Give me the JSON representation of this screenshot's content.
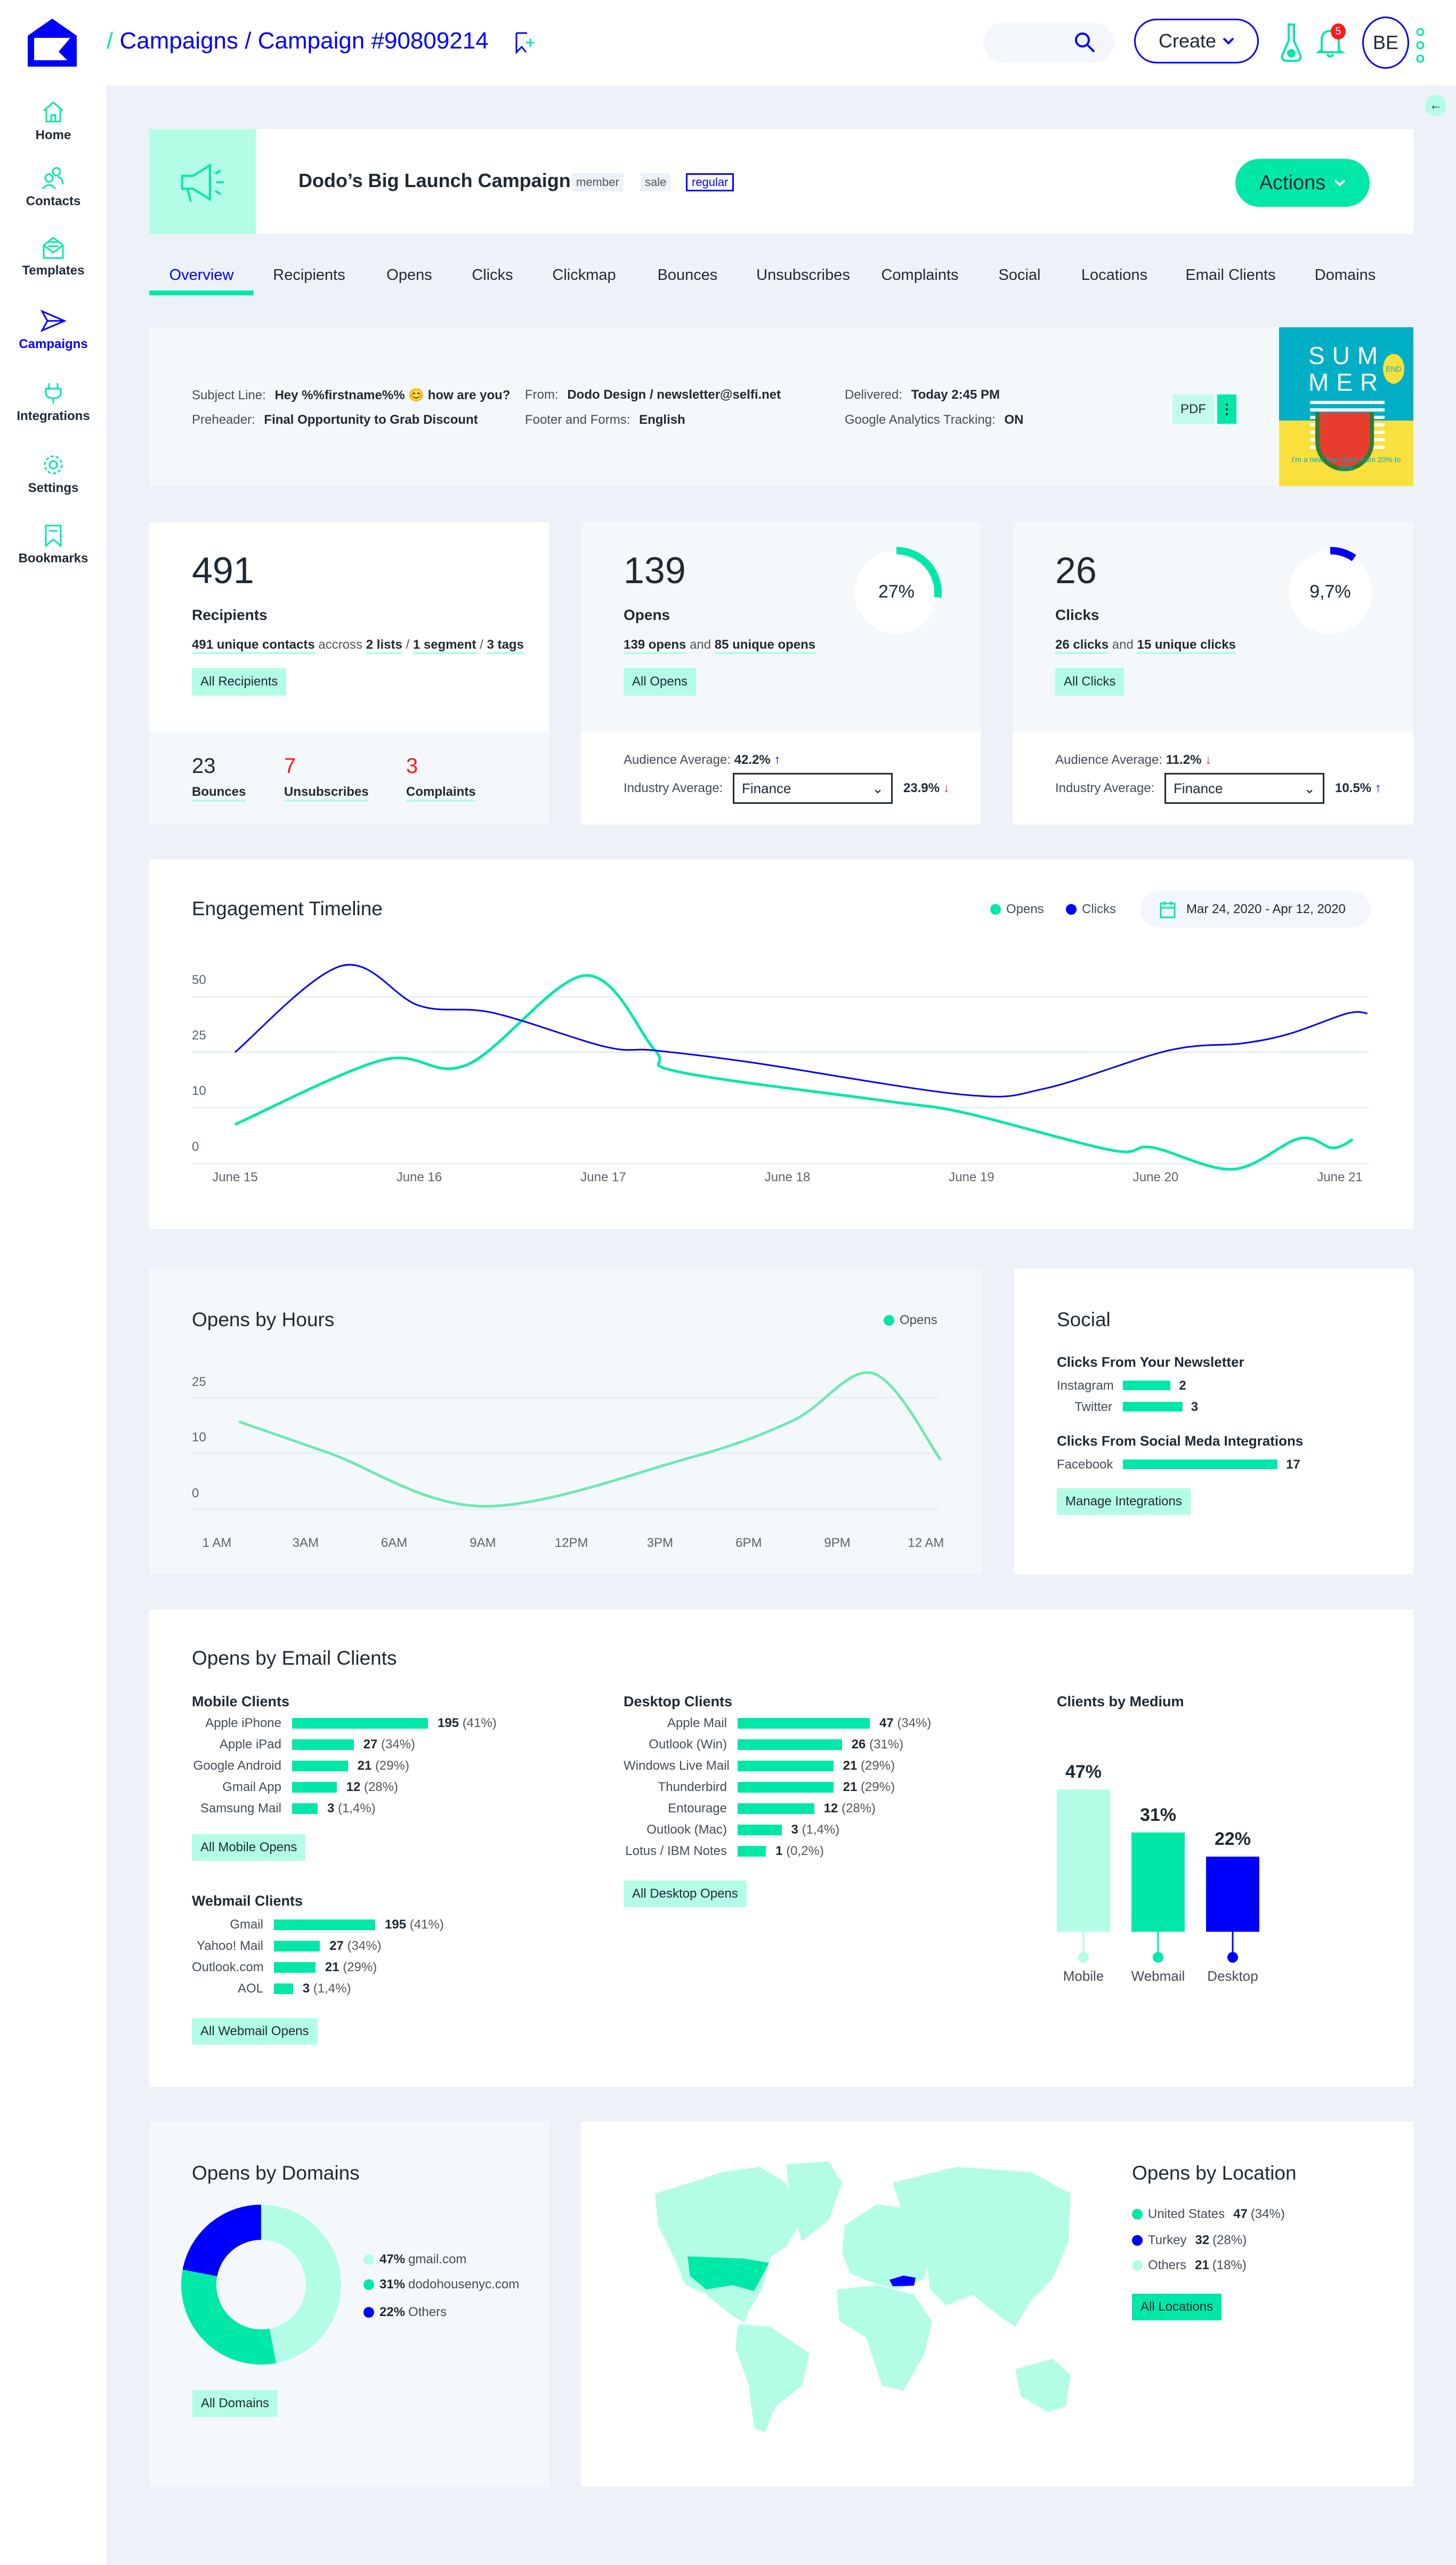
{
  "header": {
    "breadcrumb_sep": "/",
    "crumb1": "Campaigns",
    "crumb2": "Campaign #90809214",
    "create_label": "Create",
    "notification_count": "5",
    "avatar_initials": "BE"
  },
  "sidebar": {
    "items": [
      {
        "label": "Home",
        "icon": "home-icon"
      },
      {
        "label": "Contacts",
        "icon": "contacts-icon"
      },
      {
        "label": "Templates",
        "icon": "templates-icon"
      },
      {
        "label": "Campaigns",
        "icon": "campaigns-icon",
        "active": true
      },
      {
        "label": "Integrations",
        "icon": "integrations-icon"
      },
      {
        "label": "Settings",
        "icon": "settings-icon"
      },
      {
        "label": "Bookmarks",
        "icon": "bookmarks-icon"
      }
    ]
  },
  "campaign": {
    "name": "Dodo’s Big Launch Campaign",
    "tags": [
      "member",
      "sale",
      "regular"
    ],
    "actions_label": "Actions"
  },
  "tabs": [
    "Overview",
    "Recipients",
    "Opens",
    "Clicks",
    "Clickmap",
    "Bounces",
    "Unsubscribes",
    "Complaints",
    "Social",
    "Locations",
    "Email Clients",
    "Domains"
  ],
  "details": {
    "subject_label": "Subject Line:",
    "subject_value": "Hey %%firstname%% 😊 how are you?",
    "preheader_label": "Preheader:",
    "preheader_value": "Final Opportunity to Grab Discount",
    "from_label": "From:",
    "from_value": "Dodo Design / newsletter@selfi.net",
    "footer_label": "Footer and Forms:",
    "footer_value": "English",
    "delivered_label": "Delivered:",
    "delivered_value": "Today 2:45 PM",
    "ga_label": "Google Analytics Tracking:",
    "ga_value": "ON",
    "pdf_label": "PDF",
    "preview": {
      "line1": "SUM",
      "line2": "MER",
      "badge": "END",
      "text": "I'm a new Text block from 20% to 60%"
    }
  },
  "stats": {
    "recipients": {
      "value": "491",
      "label": "Recipients",
      "d1": "491 unique contacts",
      "d2": "accross",
      "d3": "2 lists",
      "d4": "1 segment",
      "d5": "3 tags",
      "button": "All Recipients",
      "bounces": "23",
      "bounces_label": "Bounces",
      "unsubs": "7",
      "unsubs_label": "Unsubscribes",
      "complaints": "3",
      "complaints_label": "Complaints"
    },
    "opens": {
      "value": "139",
      "label": "Opens",
      "rate": "27%",
      "rate_value": 27,
      "d1": "139 opens",
      "d2": "and",
      "d3": "85 unique opens",
      "button": "All Opens",
      "aud_label": "Audience Average:",
      "aud_value": "42.2%",
      "aud_trend": "up",
      "ind_label": "Industry Average:",
      "industry": "Finance",
      "ind_value": "23.9%",
      "ind_trend": "down"
    },
    "clicks": {
      "value": "26",
      "label": "Clicks",
      "rate": "9,7%",
      "rate_value": 9.7,
      "d1": "26 clicks",
      "d2": "and",
      "d3": "15 unique clicks",
      "button": "All Clicks",
      "aud_label": "Audience Average:",
      "aud_value": "11.2%",
      "aud_trend": "down",
      "ind_label": "Industry Average:",
      "industry": "Finance",
      "ind_value": "10.5%",
      "ind_trend": "up"
    }
  },
  "colors": {
    "green": "#00e8a8",
    "mint": "#b3fde6",
    "blue": "#0000ff",
    "red": "#ff1a1a"
  },
  "chart_data": [
    {
      "type": "line",
      "title": "Engagement Timeline",
      "date_range": "Mar 24, 2020 - Apr 12, 2020",
      "x_ticks": [
        "June 15",
        "June 16",
        "June 17",
        "June 18",
        "June 19",
        "June 20",
        "June 21"
      ],
      "y_ticks": [
        0,
        10,
        25,
        50
      ],
      "grid": true,
      "legend": "top-right",
      "series": [
        {
          "name": "Opens",
          "color": "#00e8a8",
          "points": [
            [
              15,
              7
            ],
            [
              15.8,
              22.9
            ],
            [
              16.26,
              21.6
            ],
            [
              16.9,
              59.6
            ],
            [
              17.28,
              26
            ],
            [
              17.41,
              19.7
            ],
            [
              18.52,
              11.9
            ],
            [
              18.96,
              9.1
            ],
            [
              19.76,
              2.4
            ],
            [
              19.98,
              2.9
            ],
            [
              20.42,
              -1
            ],
            [
              20.78,
              4.5
            ],
            [
              20.96,
              2.8
            ],
            [
              21.07,
              4.3
            ]
          ]
        },
        {
          "name": "Clicks",
          "color": "#0000ff",
          "points": [
            [
              15,
              25
            ],
            [
              15.58,
              64
            ],
            [
              16.0,
              46
            ],
            [
              16.4,
              42.8
            ],
            [
              17.01,
              27.5
            ],
            [
              17.28,
              25.8
            ],
            [
              17.81,
              22.2
            ],
            [
              18.96,
              13.5
            ],
            [
              19.4,
              15.2
            ],
            [
              20.07,
              25.8
            ],
            [
              20.47,
              29
            ],
            [
              20.73,
              33.4
            ],
            [
              21.04,
              42.5
            ],
            [
              21.15,
              42.5
            ]
          ]
        }
      ]
    },
    {
      "type": "line",
      "title": "Opens by Hours",
      "x_ticks": [
        "1 AM",
        "3AM",
        "6AM",
        "9AM",
        "12PM",
        "3PM",
        "6PM",
        "9PM",
        "12 AM"
      ],
      "x_tick_hours": [
        1,
        3,
        6,
        9,
        12,
        15,
        18,
        21,
        24
      ],
      "y_ticks": [
        0,
        10,
        25
      ],
      "grid": true,
      "legend": "top-right",
      "series": [
        {
          "name": "Opens",
          "color": "#6ee8b4",
          "points": [
            [
              1.5,
              18.5
            ],
            [
              3.8,
              10
            ],
            [
              9,
              0.5
            ],
            [
              15.9,
              9
            ],
            [
              19.5,
              18.8
            ],
            [
              22.2,
              36
            ],
            [
              24.5,
              8.8
            ]
          ]
        }
      ]
    },
    {
      "type": "bar",
      "title": "Clients by Medium",
      "categories": [
        "Mobile",
        "Webmail",
        "Desktop"
      ],
      "values": [
        47,
        31,
        22
      ],
      "labels": [
        "47%",
        "31%",
        "22%"
      ],
      "colors": [
        "#b3fde6",
        "#00e8a8",
        "#0000ff"
      ]
    },
    {
      "type": "pie",
      "title": "Opens by Domains",
      "slices": [
        {
          "label": "gmail.com",
          "value": 47,
          "pct": "47%",
          "color": "#b3fde6"
        },
        {
          "label": "dodohousenyc.com",
          "value": 31,
          "pct": "31%",
          "color": "#00e8a8"
        },
        {
          "label": "Others",
          "value": 22,
          "pct": "22%",
          "color": "#0000ff"
        }
      ]
    }
  ],
  "social": {
    "title": "Social",
    "newsletter_title": "Clicks From Your Newsletter",
    "newsletter": [
      {
        "label": "Instagram",
        "value": "2"
      },
      {
        "label": "Twitter",
        "value": "3"
      }
    ],
    "integrations_title": "Clicks From Social Meda Integrations",
    "integrations": [
      {
        "label": "Facebook",
        "value": "17"
      }
    ],
    "button": "Manage Integrations"
  },
  "email_clients": {
    "title": "Opens by Email Clients",
    "mobile": {
      "title": "Mobile Clients",
      "button": "All Mobile Opens",
      "rows": [
        {
          "label": "Apple iPhone",
          "value": 195,
          "pct": "(41%)"
        },
        {
          "label": "Apple iPad",
          "value": 27,
          "pct": "(34%)"
        },
        {
          "label": "Google Android",
          "value": 21,
          "pct": "(29%)"
        },
        {
          "label": "Gmail App",
          "value": 12,
          "pct": "(28%)"
        },
        {
          "label": "Samsung Mail",
          "value": 3,
          "pct": "(1,4%)"
        }
      ]
    },
    "webmail": {
      "title": "Webmail Clients",
      "button": "All Webmail Opens",
      "rows": [
        {
          "label": "Gmail",
          "value": 195,
          "pct": "(41%)"
        },
        {
          "label": "Yahoo! Mail",
          "value": 27,
          "pct": "(34%)"
        },
        {
          "label": "Outlook.com",
          "value": 21,
          "pct": "(29%)"
        },
        {
          "label": "AOL",
          "value": 3,
          "pct": "(1,4%)"
        }
      ]
    },
    "desktop": {
      "title": "Desktop Clients",
      "button": "All Desktop Opens",
      "rows": [
        {
          "label": "Apple Mail",
          "value": 47,
          "pct": "(34%)"
        },
        {
          "label": "Outlook (Win)",
          "value": 26,
          "pct": "(31%)"
        },
        {
          "label": "Windows Live Mail",
          "value": 21,
          "pct": "(29%)"
        },
        {
          "label": "Thunderbird",
          "value": 21,
          "pct": "(29%)"
        },
        {
          "label": "Entourage",
          "value": 12,
          "pct": "(28%)"
        },
        {
          "label": "Outlook (Mac)",
          "value": 3,
          "pct": "(1,4%)"
        },
        {
          "label": "Lotus / IBM Notes",
          "value": 1,
          "pct": "(0,2%)"
        }
      ]
    }
  },
  "domains": {
    "button": "All Domains"
  },
  "location": {
    "title": "Opens by Location",
    "button": "All Locations",
    "rows": [
      {
        "label": "United States",
        "value": "47",
        "pct": "(34%)",
        "color": "#00e8a8"
      },
      {
        "label": "Turkey",
        "value": "32",
        "pct": "(28%)",
        "color": "#0000ff"
      },
      {
        "label": "Others",
        "value": "21",
        "pct": "(18%)",
        "color": "#b3fde6"
      }
    ]
  }
}
